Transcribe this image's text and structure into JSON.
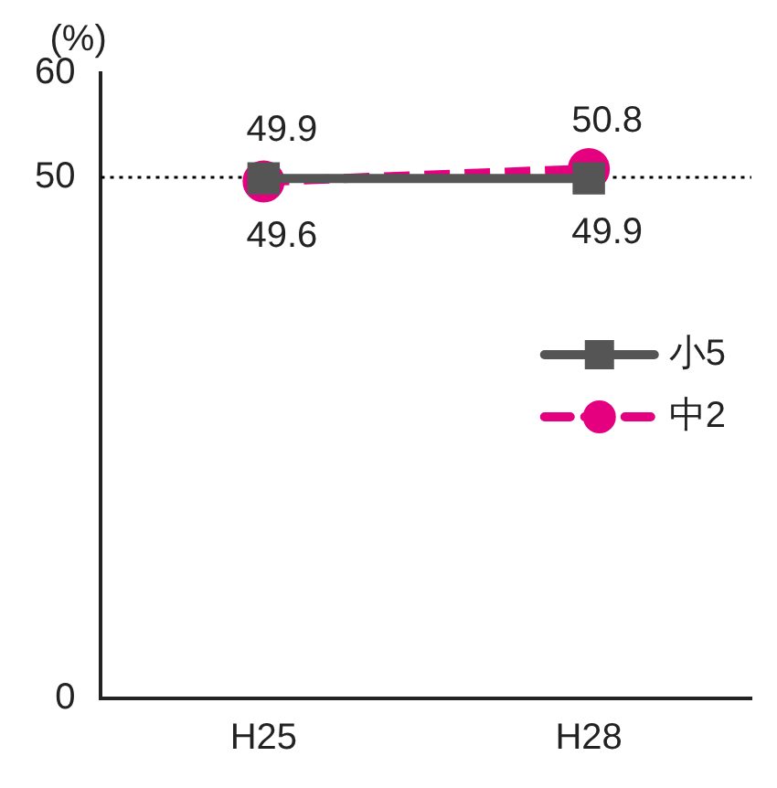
{
  "chart_data": {
    "type": "line",
    "ylabel": "(%)",
    "categories": [
      "H25",
      "H28"
    ],
    "series": [
      {
        "name": "小5",
        "color": "#555555",
        "values": [
          49.9,
          49.9
        ],
        "marker": "square",
        "line_style": "solid"
      },
      {
        "name": "中2",
        "color": "#e4007f",
        "values": [
          49.6,
          50.8
        ],
        "marker": "circle",
        "line_style": "dashed"
      }
    ],
    "ylim": [
      0,
      60
    ],
    "yticks": [
      0,
      50,
      60
    ],
    "ref_lines": [
      {
        "axis": "y",
        "value": 50,
        "color": "#000000",
        "line_style": "dotted"
      }
    ],
    "data_labels": true,
    "legend": "right",
    "grid": false
  }
}
